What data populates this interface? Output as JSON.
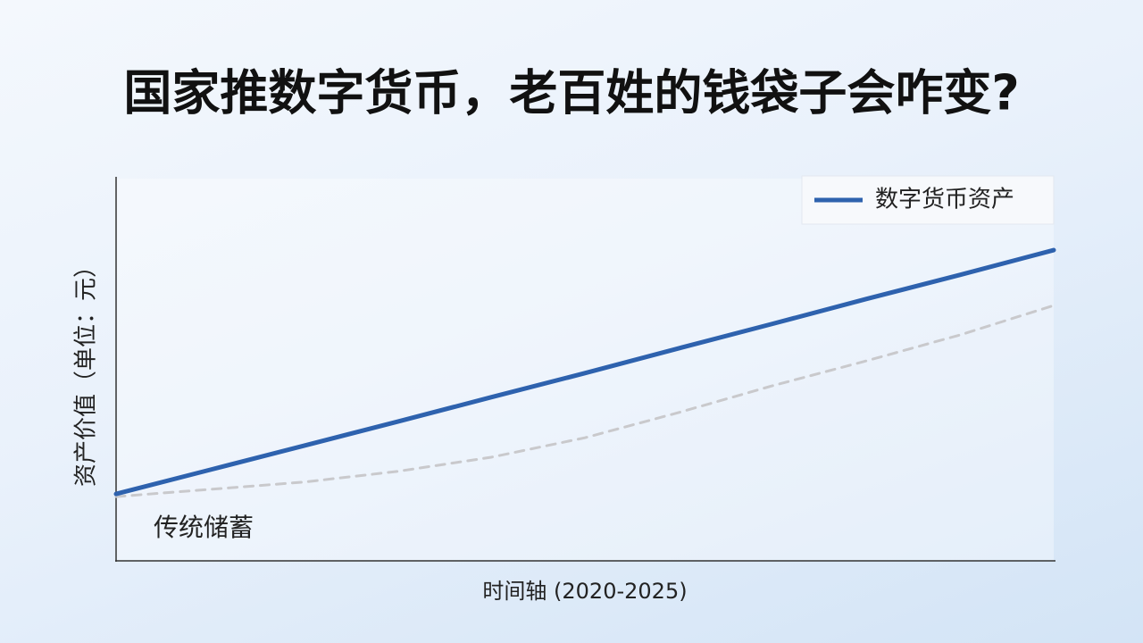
{
  "chart_data": {
    "type": "line",
    "title": "国家推数字货币，老百姓的钱袋子会咋变?",
    "x_label": "时间轴 (2020-2025)",
    "y_label": "资产价值（单位：元）",
    "categories": [
      null,
      null,
      null,
      null,
      null,
      null,
      null,
      null,
      null,
      null,
      null
    ],
    "ylim": [
      0,
      100
    ],
    "legend": "top-right",
    "series": [
      {
        "name": "数字货币资产",
        "color": "#2e62ae",
        "dashed": false,
        "in_legend": true,
        "values": [
          17.5,
          23.8,
          30.1,
          36.4,
          42.8,
          49.1,
          55.6,
          62.0,
          68.5,
          74.8,
          81.3
        ]
      },
      {
        "name": "传统储蓄",
        "color": "#c9c9cc",
        "dashed": true,
        "in_legend": false,
        "values": [
          16.8,
          18.7,
          20.6,
          23.4,
          27.1,
          32.2,
          38.8,
          45.8,
          52.3,
          59.1,
          66.8
        ]
      }
    ]
  }
}
